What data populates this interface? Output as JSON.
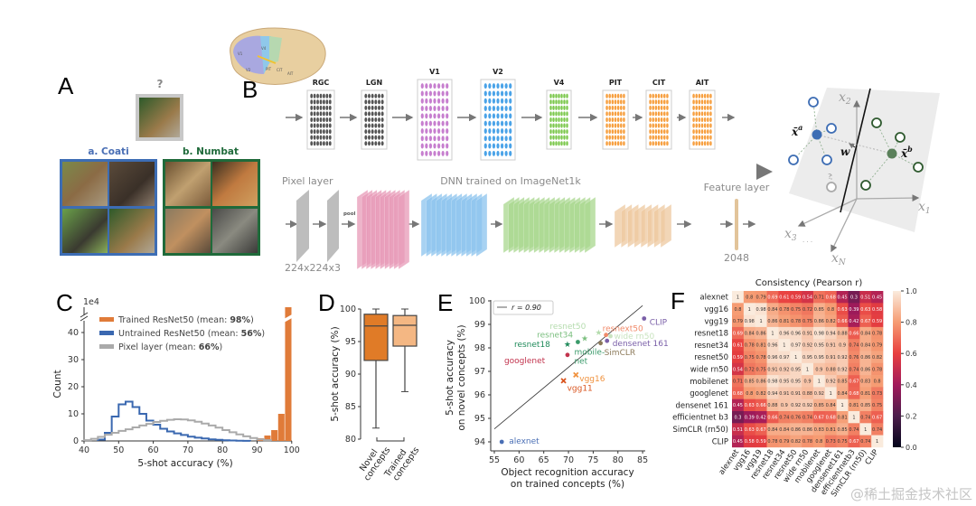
{
  "panels": {
    "A": "A",
    "B": "B",
    "C": "C",
    "D": "D",
    "E": "E",
    "F": "F"
  },
  "panel_a": {
    "query_mark": "?",
    "class_a": "a. Coati",
    "class_b": "b. Numbat"
  },
  "panel_b": {
    "brain_areas": [
      "V1",
      "V2",
      "V4",
      "PIT",
      "CIT",
      "AIT"
    ],
    "stages": [
      {
        "label": "RGC",
        "color": "#555555"
      },
      {
        "label": "LGN",
        "color": "#555555"
      },
      {
        "label": "V1",
        "color": "#c77fcf"
      },
      {
        "label": "V2",
        "color": "#4aa3e8"
      },
      {
        "label": "V4",
        "color": "#7cc84d"
      },
      {
        "label": "PIT",
        "color": "#f7a040"
      },
      {
        "label": "CIT",
        "color": "#f7a040"
      },
      {
        "label": "AIT",
        "color": "#f7a040"
      }
    ],
    "pixel_layer": "Pixel layer",
    "pool": "pool",
    "dnn_title": "DNN trained on ImageNet1k",
    "feature_layer": "Feature layer",
    "input_dims": "224x224x3",
    "feature_dims": "2048",
    "space": {
      "x1": {
        "sym": "x",
        "sub": "1"
      },
      "x2": {
        "sym": "x",
        "sub": "2"
      },
      "x3": {
        "sym": "x",
        "sub": "3"
      },
      "xN": {
        "sym": "x",
        "sub": "N"
      },
      "dots": "· · ·",
      "xa": {
        "sym": "x̄",
        "sup": "a"
      },
      "xb": {
        "sym": "x̄",
        "sup": "b"
      },
      "w": "w",
      "query": "?"
    }
  },
  "chart_data": [
    {
      "id": "C",
      "type": "bar",
      "xlabel": "5-shot accuracy (%)",
      "ylabel": "Count",
      "yscale_label": "1e4",
      "xlim": [
        40,
        100
      ],
      "ylim": [
        0,
        45
      ],
      "xticks": [
        40,
        50,
        60,
        70,
        80,
        90,
        100
      ],
      "yticks": [
        0,
        10,
        20,
        30,
        40
      ],
      "bin_width": 2,
      "legend_position": "top-left",
      "series": [
        {
          "name": "Trained ResNet50 (mean: 98%)",
          "label_prefix": "Trained ResNet50 (mean: ",
          "label_bold": "98%",
          "label_suffix": ")",
          "color": "#e07b39",
          "style": "bar",
          "bins": [
            90,
            92,
            94,
            96,
            98
          ],
          "values": [
            1,
            2,
            4,
            10,
            80
          ]
        },
        {
          "name": "Untrained ResNet50 (mean: 56%)",
          "label_prefix": "Untrained ResNet50 (mean: ",
          "label_bold": "56%",
          "label_suffix": ")",
          "color": "#3a68b0",
          "style": "step",
          "bins": [
            44,
            46,
            48,
            50,
            52,
            54,
            56,
            58,
            60,
            62,
            64,
            66,
            68,
            70,
            72,
            74,
            76,
            78,
            80,
            82,
            84,
            86
          ],
          "values": [
            0.5,
            3,
            9,
            13.5,
            14.5,
            12.5,
            10,
            7.5,
            6,
            4.5,
            3.5,
            2.8,
            2.2,
            1.6,
            1.2,
            0.9,
            0.6,
            0.4,
            0.25,
            0.15,
            0.1,
            0.05
          ]
        },
        {
          "name": "Pixel layer (mean: 66%)",
          "label_prefix": "Pixel layer (mean: ",
          "label_bold": "66%",
          "label_suffix": ")",
          "color": "#aaaaaa",
          "style": "step",
          "bins": [
            40,
            42,
            44,
            46,
            48,
            50,
            52,
            54,
            56,
            58,
            60,
            62,
            64,
            66,
            68,
            70,
            72,
            74,
            76,
            78,
            80,
            82,
            84,
            86,
            88,
            90,
            92
          ],
          "values": [
            0.3,
            0.8,
            1.5,
            2.3,
            3,
            3.7,
            4.3,
            5,
            5.7,
            6.3,
            7,
            7.4,
            7.8,
            8,
            7.9,
            7.6,
            7.1,
            6.4,
            5.7,
            4.9,
            4,
            3.2,
            2.4,
            1.7,
            1.1,
            0.6,
            0.3
          ]
        }
      ]
    },
    {
      "id": "D",
      "type": "box",
      "ylabel": "5-shot accuracy (%)",
      "ylim": [
        80,
        100
      ],
      "yticks": [
        80,
        85,
        90,
        95,
        100
      ],
      "categories": [
        {
          "line1": "Novel",
          "line2": "concepts",
          "color": "#e07b27",
          "whisker_low": 81.7,
          "q1": 92.1,
          "median": 97.4,
          "q3": 99.2,
          "whisker_high": 100
        },
        {
          "line1": "Trained",
          "line2": "concepts",
          "color": "#f4b783",
          "whisker_low": 87.3,
          "q1": 94.3,
          "median": 97.5,
          "q3": 99.0,
          "whisker_high": 100
        }
      ]
    },
    {
      "id": "E",
      "type": "scatter",
      "xlabel_line1": "Object recognition accuracy",
      "xlabel_line2": "on trained concepts (%)",
      "ylabel_line1": "5-shot accuracy",
      "ylabel_line2": "on novel concepts (%)",
      "xlim": [
        54,
        87
      ],
      "ylim": [
        93.8,
        100.1
      ],
      "xticks": [
        55,
        60,
        65,
        70,
        75,
        80,
        85
      ],
      "yticks": [
        94,
        95,
        96,
        97,
        98,
        99,
        100
      ],
      "legend": "r = 0.90",
      "fit_line": {
        "x": [
          55,
          85
        ],
        "y": [
          94.55,
          99.8
        ]
      },
      "points": [
        {
          "name": "alexnet",
          "x": 56.5,
          "y": 94.0,
          "color": "#4a6fb5",
          "marker": "dot",
          "label_dx": 8,
          "label_dy": -1
        },
        {
          "name": "vgg11",
          "x": 69.0,
          "y": 96.6,
          "color": "#d9541e",
          "marker": "x",
          "label_dx": 4,
          "label_dy": 8
        },
        {
          "name": "vgg16",
          "x": 71.5,
          "y": 96.85,
          "color": "#f0923e",
          "marker": "x",
          "label_dx": 4,
          "label_dy": 4
        },
        {
          "name": "googlenet",
          "x": 69.8,
          "y": 97.7,
          "color": "#c2334d",
          "marker": "dot",
          "label_dx": -70,
          "label_dy": 6
        },
        {
          "name": "resnet18",
          "x": 69.8,
          "y": 98.15,
          "color": "#1f8a5a",
          "marker": "star",
          "label_dx": -59,
          "label_dy": 0
        },
        {
          "name": "resnet34",
          "x": 73.3,
          "y": 98.4,
          "color": "#7bbf7f",
          "marker": "star",
          "label_dx": -53,
          "label_dy": -4
        },
        {
          "name": "resnet50",
          "x": 76.1,
          "y": 98.65,
          "color": "#b5dcae",
          "marker": "star",
          "label_dx": -54,
          "label_dy": -7
        },
        {
          "name": "mobile-",
          "x": 71.9,
          "y": 98.25,
          "color": "#3a9a6a",
          "marker": "dot",
          "label_dx": -4,
          "label_dy": 11
        },
        {
          "name": "net",
          "x": 71.9,
          "y": 98.25,
          "color": "#3a9a6a",
          "marker": "none",
          "label_dx": -4,
          "label_dy": 21
        },
        {
          "name": "resnext50",
          "x": 77.6,
          "y": 98.55,
          "color": "#f08a6a",
          "marker": "dot",
          "label_dx": -4,
          "label_dy": -7
        },
        {
          "name": "wide rn50",
          "x": 78.5,
          "y": 98.5,
          "color": "#c9e3bf",
          "marker": "dot",
          "label_dx": 4,
          "label_dy": 0
        },
        {
          "name": "densenet 161",
          "x": 77.8,
          "y": 98.3,
          "color": "#7a5fa8",
          "marker": "dot",
          "label_dx": 6,
          "label_dy": 3
        },
        {
          "name": "SimCLR",
          "x": 76.5,
          "y": 98.2,
          "color": "#8c7a5a",
          "marker": "dot",
          "label_dx": 4,
          "label_dy": 10
        },
        {
          "name": "CLIP",
          "x": 85.3,
          "y": 99.25,
          "color": "#7a5fa8",
          "marker": "dot",
          "label_dx": 6,
          "label_dy": 4
        }
      ]
    },
    {
      "id": "F",
      "type": "heatmap",
      "title": "Consistency (Pearson r)",
      "labels": [
        "alexnet",
        "vgg16",
        "vgg19",
        "resnet18",
        "resnet34",
        "resnet50",
        "wide rn50",
        "mobilenet",
        "googlenet",
        "densenet 161",
        "efficientnet b3",
        "SimCLR (rn50)",
        "CLIP"
      ],
      "col_labels": [
        "alexnet",
        "vgg16",
        "vgg19",
        "resnet18",
        "resnet34",
        "resnet50",
        "wide rn50",
        "mobilenet",
        "googlenet",
        "densenet161",
        "efficientnetb3",
        "SimCLR (rn50)",
        "CLIP"
      ],
      "colorbar_ticks": [
        "0.0",
        "0.2",
        "0.4",
        "0.6",
        "0.8",
        "1.0"
      ],
      "vmin": 0,
      "vmax": 1,
      "values": [
        [
          1,
          0.8,
          0.79,
          0.69,
          0.61,
          0.59,
          0.54,
          0.71,
          0.68,
          0.45,
          0.3,
          0.51,
          0.45
        ],
        [
          0.8,
          1,
          0.98,
          0.84,
          0.78,
          0.75,
          0.72,
          0.85,
          0.8,
          0.63,
          0.39,
          0.63,
          0.58
        ],
        [
          0.79,
          0.98,
          1,
          0.86,
          0.81,
          0.78,
          0.75,
          0.86,
          0.82,
          0.66,
          0.42,
          0.67,
          0.59
        ],
        [
          0.69,
          0.84,
          0.86,
          1,
          0.96,
          0.96,
          0.91,
          0.98,
          0.94,
          0.88,
          0.66,
          0.84,
          0.78
        ],
        [
          0.61,
          0.78,
          0.81,
          0.96,
          1,
          0.97,
          0.92,
          0.95,
          0.91,
          0.9,
          0.74,
          0.84,
          0.79
        ],
        [
          0.59,
          0.75,
          0.78,
          0.96,
          0.97,
          1,
          0.95,
          0.95,
          0.91,
          0.92,
          0.76,
          0.86,
          0.82
        ],
        [
          0.54,
          0.72,
          0.75,
          0.91,
          0.92,
          0.95,
          1,
          0.9,
          0.88,
          0.92,
          0.74,
          0.86,
          0.78
        ],
        [
          0.71,
          0.85,
          0.86,
          0.98,
          0.95,
          0.95,
          0.9,
          1,
          0.92,
          0.85,
          0.67,
          0.83,
          0.8
        ],
        [
          0.68,
          0.8,
          0.82,
          0.94,
          0.91,
          0.91,
          0.88,
          0.92,
          1,
          0.84,
          0.68,
          0.81,
          0.73
        ],
        [
          0.45,
          0.63,
          0.66,
          0.88,
          0.9,
          0.92,
          0.92,
          0.85,
          0.84,
          1,
          0.81,
          0.85,
          0.75
        ],
        [
          0.3,
          0.39,
          0.42,
          0.66,
          0.74,
          0.76,
          0.74,
          0.67,
          0.68,
          0.81,
          1,
          0.74,
          0.67
        ],
        [
          0.51,
          0.63,
          0.67,
          0.84,
          0.84,
          0.86,
          0.86,
          0.83,
          0.81,
          0.85,
          0.74,
          1,
          0.74
        ],
        [
          0.45,
          0.58,
          0.59,
          0.78,
          0.79,
          0.82,
          0.78,
          0.8,
          0.73,
          0.75,
          0.67,
          0.74,
          1
        ]
      ]
    }
  ],
  "watermark": "@稀土掘金技术社区"
}
